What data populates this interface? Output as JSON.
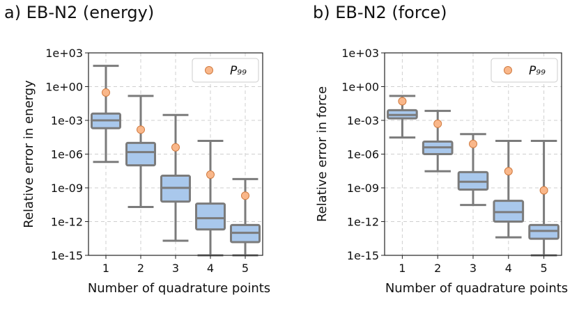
{
  "chart_data": [
    {
      "type": "box",
      "panel": "a) EB-N2 (energy)",
      "xlabel": "Number of quadrature points",
      "ylabel": "Relative error in energy",
      "yscale": "log",
      "ylim": [
        1e-15,
        1000.0
      ],
      "yticks": [
        "1e+03",
        "1e+00",
        "1e-03",
        "1e-06",
        "1e-09",
        "1e-12",
        "1e-15"
      ],
      "categories": [
        "1",
        "2",
        "3",
        "4",
        "5"
      ],
      "grid": true,
      "legend": {
        "label": "P₉₉",
        "position": "top-right"
      },
      "boxes": [
        {
          "whisker_low": 2e-07,
          "q1": 0.0002,
          "median": 0.001,
          "q3": 0.004,
          "whisker_high": 70,
          "p99": 0.3
        },
        {
          "whisker_low": 2e-11,
          "q1": 1e-07,
          "median": 1.5e-06,
          "q3": 1e-05,
          "whisker_high": 0.15,
          "p99": 0.00015
        },
        {
          "whisker_low": 2e-14,
          "q1": 6e-11,
          "median": 1e-09,
          "q3": 1.2e-08,
          "whisker_high": 0.003,
          "p99": 4e-06
        },
        {
          "whisker_low": 1e-15,
          "q1": 2e-13,
          "median": 2e-12,
          "q3": 4e-11,
          "whisker_high": 1.5e-05,
          "p99": 1.5e-08
        },
        {
          "whisker_low": 1e-15,
          "q1": 1.5e-14,
          "median": 1e-13,
          "q3": 5e-13,
          "whisker_high": 6e-09,
          "p99": 2e-10
        }
      ],
      "colors": {
        "box": "#a9c8ec",
        "line": "#7b7b7b",
        "p99": "#f9b78a"
      }
    },
    {
      "type": "box",
      "panel": "b) EB-N2 (force)",
      "xlabel": "Number of quadrature points",
      "ylabel": "Relative error in force",
      "yscale": "log",
      "ylim": [
        1e-15,
        1000.0
      ],
      "yticks": [
        "1e+03",
        "1e+00",
        "1e-03",
        "1e-06",
        "1e-09",
        "1e-12",
        "1e-15"
      ],
      "categories": [
        "1",
        "2",
        "3",
        "4",
        "5"
      ],
      "grid": true,
      "legend": {
        "label": "P₉₉",
        "position": "top-right"
      },
      "boxes": [
        {
          "whisker_low": 3e-05,
          "q1": 0.0015,
          "median": 0.003,
          "q3": 0.008,
          "whisker_high": 0.15,
          "p99": 0.05
        },
        {
          "whisker_low": 3e-08,
          "q1": 1e-06,
          "median": 4e-06,
          "q3": 1.3e-05,
          "whisker_high": 0.007,
          "p99": 0.0005
        },
        {
          "whisker_low": 3e-11,
          "q1": 7e-10,
          "median": 3.5e-09,
          "q3": 2.5e-08,
          "whisker_high": 6e-05,
          "p99": 8e-06
        },
        {
          "whisker_low": 4e-14,
          "q1": 1e-12,
          "median": 7e-12,
          "q3": 7e-11,
          "whisker_high": 1.5e-05,
          "p99": 3e-08
        },
        {
          "whisker_low": 1e-15,
          "q1": 3e-14,
          "median": 1.5e-13,
          "q3": 5e-13,
          "whisker_high": 1.5e-05,
          "p99": 6e-10
        }
      ],
      "colors": {
        "box": "#a9c8ec",
        "line": "#7b7b7b",
        "p99": "#f9b78a"
      }
    }
  ]
}
